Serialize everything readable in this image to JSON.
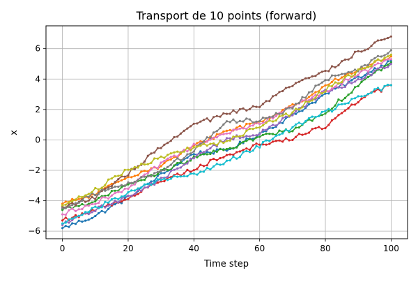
{
  "chart_data": {
    "type": "line",
    "title": "Transport de 10 points (forward)",
    "xlabel": "Time step",
    "ylabel": "x",
    "xlim": [
      -5,
      105
    ],
    "ylim": [
      -6.5,
      7.5
    ],
    "xticks": [
      0,
      20,
      40,
      60,
      80,
      100
    ],
    "yticks": [
      -6,
      -4,
      -2,
      0,
      2,
      4,
      6
    ],
    "grid": true,
    "legend": "none",
    "series": [
      {
        "color": "#1f77b4",
        "x": [
          0,
          10,
          20,
          30,
          40,
          50,
          60,
          70,
          80,
          90,
          100
        ],
        "y": [
          -5.8,
          -5.0,
          -3.8,
          -2.3,
          -0.9,
          -0.7,
          0.4,
          1.6,
          3.0,
          4.1,
          5.2
        ]
      },
      {
        "color": "#ff7f0e",
        "x": [
          0,
          10,
          20,
          30,
          40,
          50,
          60,
          70,
          80,
          90,
          100
        ],
        "y": [
          -4.2,
          -3.6,
          -2.4,
          -1.7,
          -0.4,
          0.6,
          1.2,
          2.2,
          3.6,
          4.6,
          5.5
        ]
      },
      {
        "color": "#2ca02c",
        "x": [
          0,
          10,
          20,
          30,
          40,
          50,
          60,
          70,
          80,
          90,
          100
        ],
        "y": [
          -4.6,
          -4.0,
          -3.0,
          -2.1,
          -1.2,
          -0.6,
          0.2,
          0.7,
          1.8,
          3.6,
          5.1
        ]
      },
      {
        "color": "#d62728",
        "x": [
          0,
          10,
          20,
          30,
          40,
          50,
          60,
          70,
          80,
          90,
          100
        ],
        "y": [
          -5.3,
          -4.6,
          -3.8,
          -2.7,
          -1.9,
          -1.0,
          -0.3,
          0.1,
          0.9,
          2.6,
          3.6
        ]
      },
      {
        "color": "#9467bd",
        "x": [
          0,
          10,
          20,
          30,
          40,
          50,
          60,
          70,
          80,
          90,
          100
        ],
        "y": [
          -5.6,
          -4.6,
          -3.7,
          -2.6,
          -1.2,
          0.1,
          0.4,
          1.7,
          3.2,
          3.9,
          5.0
        ]
      },
      {
        "color": "#8c564b",
        "x": [
          0,
          10,
          20,
          30,
          40,
          50,
          60,
          70,
          80,
          90,
          100
        ],
        "y": [
          -4.4,
          -3.8,
          -2.2,
          -0.5,
          1.0,
          1.7,
          2.2,
          3.6,
          4.5,
          5.8,
          6.8
        ]
      },
      {
        "color": "#e377c2",
        "x": [
          0,
          10,
          20,
          30,
          40,
          50,
          60,
          70,
          80,
          90,
          100
        ],
        "y": [
          -4.9,
          -4.1,
          -3.2,
          -1.6,
          -0.4,
          0.4,
          1.1,
          2.2,
          3.2,
          4.3,
          5.3
        ]
      },
      {
        "color": "#7f7f7f",
        "x": [
          0,
          10,
          20,
          30,
          40,
          50,
          60,
          70,
          80,
          90,
          100
        ],
        "y": [
          -4.5,
          -3.5,
          -2.9,
          -2.0,
          -0.7,
          1.2,
          1.3,
          2.1,
          4.0,
          4.6,
          5.9
        ]
      },
      {
        "color": "#bcbd22",
        "x": [
          0,
          10,
          20,
          30,
          40,
          50,
          60,
          70,
          80,
          90,
          100
        ],
        "y": [
          -4.3,
          -3.3,
          -1.9,
          -1.2,
          -0.5,
          -0.1,
          0.9,
          1.8,
          3.3,
          4.5,
          5.6
        ]
      },
      {
        "color": "#17becf",
        "x": [
          0,
          10,
          20,
          30,
          40,
          50,
          60,
          70,
          80,
          90,
          100
        ],
        "y": [
          -5.5,
          -4.5,
          -3.5,
          -2.6,
          -2.3,
          -1.4,
          -0.4,
          0.8,
          1.8,
          2.8,
          3.6
        ]
      }
    ]
  }
}
